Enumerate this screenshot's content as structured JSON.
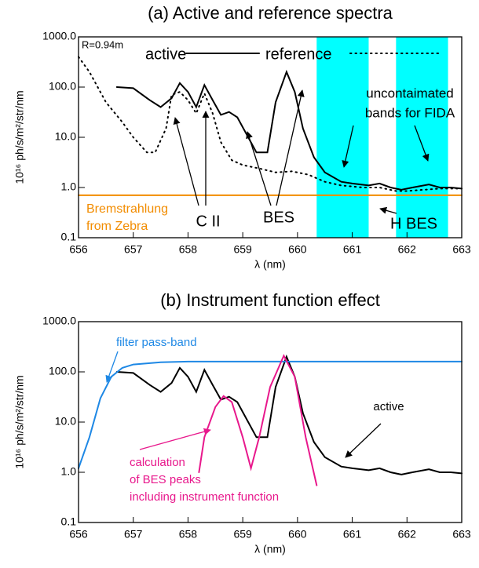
{
  "chart_data": [
    {
      "type": "line",
      "title": "(a) Active and reference spectra",
      "x_label": "λ (nm)",
      "y_label": "10¹⁶ ph/s/m²/str/nm",
      "log_y": true,
      "xlim": [
        656,
        663
      ],
      "ylim": [
        0.1,
        1000
      ],
      "xticks": [
        656,
        657,
        658,
        659,
        660,
        661,
        662,
        663
      ],
      "yticks": [
        {
          "value": 0.1,
          "label": "0.1"
        },
        {
          "value": 1,
          "label": "1.0"
        },
        {
          "value": 10,
          "label": "10.0"
        },
        {
          "value": 100,
          "label": "100.0"
        },
        {
          "value": 1000,
          "label": "1000.0"
        }
      ],
      "legend": true,
      "band_color": "#00ffff",
      "bands": [
        [
          660.35,
          661.3
        ],
        [
          661.8,
          662.75
        ]
      ],
      "series": [
        {
          "name": "active",
          "color": "#000000",
          "dash": false,
          "x": [
            656.7,
            657.0,
            657.3,
            657.5,
            657.7,
            657.85,
            658.0,
            658.15,
            658.3,
            658.45,
            658.6,
            658.75,
            658.9,
            659.1,
            659.25,
            659.45,
            659.6,
            659.8,
            659.95,
            660.1,
            660.3,
            660.5,
            660.8,
            661.0,
            661.3,
            661.5,
            661.7,
            661.9,
            662.1,
            662.4,
            662.6,
            662.8,
            663.0
          ],
          "values": [
            100,
            95,
            55,
            40,
            60,
            120,
            80,
            40,
            110,
            55,
            28,
            32,
            25,
            10,
            5,
            5,
            50,
            200,
            80,
            15,
            4,
            2,
            1.3,
            1.2,
            1.1,
            1.2,
            1.0,
            0.9,
            1.0,
            1.15,
            1.0,
            1.0,
            0.95
          ]
        },
        {
          "name": "reference",
          "color": "#000000",
          "dash": true,
          "x": [
            656.0,
            656.2,
            656.5,
            656.8,
            657.0,
            657.25,
            657.4,
            657.6,
            657.7,
            657.85,
            658.0,
            658.15,
            658.3,
            658.45,
            658.6,
            658.8,
            659.0,
            659.3,
            659.6,
            659.9,
            660.2,
            660.5,
            660.8,
            661.2,
            661.5,
            661.8,
            662.0,
            662.3,
            662.6,
            663.0
          ],
          "values": [
            400,
            200,
            50,
            20,
            10,
            5,
            5,
            15,
            70,
            80,
            55,
            30,
            75,
            30,
            8,
            3.5,
            2.8,
            2.4,
            2.0,
            2.1,
            1.8,
            1.3,
            1.1,
            1.0,
            1.0,
            0.85,
            0.85,
            0.9,
            0.95,
            0.95
          ]
        },
        {
          "color": "#f28c00",
          "dash": false,
          "x": [
            656,
            663
          ],
          "values": [
            0.7,
            0.7
          ]
        }
      ],
      "annotations": [
        {
          "lines": [
            "R=0.94m"
          ],
          "color": "#000000"
        },
        {
          "lines": [
            "uncontaimated",
            "bands for FIDA"
          ],
          "color": "#000000"
        },
        {
          "lines": [
            "C II"
          ],
          "color": "#000000"
        },
        {
          "lines": [
            "BES"
          ],
          "color": "#000000"
        },
        {
          "lines": [
            "H BES"
          ],
          "color": "#000000"
        },
        {
          "lines": [
            "Bremstrahlung",
            "from Zebra"
          ],
          "color": "#f28c00"
        }
      ]
    },
    {
      "type": "line",
      "title": "(b) Instrument function effect",
      "x_label": "λ (nm)",
      "y_label": "10¹⁶ ph/s/m²/str/nm",
      "log_y": true,
      "xlim": [
        656,
        663
      ],
      "ylim": [
        0.1,
        1000
      ],
      "xticks": [
        656,
        657,
        658,
        659,
        660,
        661,
        662,
        663
      ],
      "yticks": [
        {
          "value": 0.1,
          "label": "0.1"
        },
        {
          "value": 1,
          "label": "1.0"
        },
        {
          "value": 10,
          "label": "10.0"
        },
        {
          "value": 100,
          "label": "100.0"
        },
        {
          "value": 1000,
          "label": "1000.0"
        }
      ],
      "legend": false,
      "series": [
        {
          "color": "#000000",
          "dash": false,
          "x": [
            656.7,
            657.0,
            657.3,
            657.5,
            657.7,
            657.85,
            658.0,
            658.15,
            658.3,
            658.45,
            658.6,
            658.75,
            658.9,
            659.1,
            659.25,
            659.45,
            659.6,
            659.8,
            659.95,
            660.1,
            660.3,
            660.5,
            660.8,
            661.0,
            661.3,
            661.5,
            661.7,
            661.9,
            662.1,
            662.4,
            662.6,
            662.8,
            663.0
          ],
          "values": [
            100,
            95,
            55,
            40,
            60,
            120,
            80,
            40,
            110,
            55,
            28,
            32,
            25,
            10,
            5,
            5,
            50,
            200,
            80,
            15,
            4,
            2,
            1.3,
            1.2,
            1.1,
            1.2,
            1.0,
            0.9,
            1.0,
            1.15,
            1.0,
            1.0,
            0.95
          ]
        },
        {
          "color": "#1e88e5",
          "dash": false,
          "x": [
            656.0,
            656.2,
            656.4,
            656.6,
            656.8,
            657.0,
            657.5,
            658.0,
            663.0
          ],
          "values": [
            1.2,
            5,
            30,
            80,
            120,
            140,
            155,
            160,
            160
          ]
        },
        {
          "color": "#e8188c",
          "dash": false,
          "x": [
            658.2,
            658.3,
            658.5,
            658.65,
            658.8,
            659.0,
            659.15,
            659.3,
            659.5,
            659.75,
            659.95,
            660.15,
            660.35
          ],
          "values": [
            1,
            5,
            20,
            33,
            25,
            5,
            1.2,
            5,
            50,
            210,
            80,
            5,
            0.55
          ]
        }
      ],
      "annotations": [
        {
          "lines": [
            "filter pass-band"
          ],
          "color": "#1e88e5"
        },
        {
          "lines": [
            "active"
          ],
          "color": "#000000"
        },
        {
          "lines": [
            "calculation",
            "of BES peaks",
            "including instrument function"
          ],
          "color": "#e8188c"
        }
      ]
    }
  ]
}
